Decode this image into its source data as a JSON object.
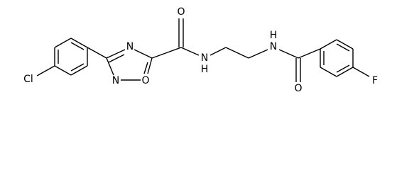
{
  "atoms": [
    "Cl",
    "N",
    "N",
    "O",
    "O",
    "N",
    "H",
    "N",
    "H",
    "O",
    "F"
  ]
}
